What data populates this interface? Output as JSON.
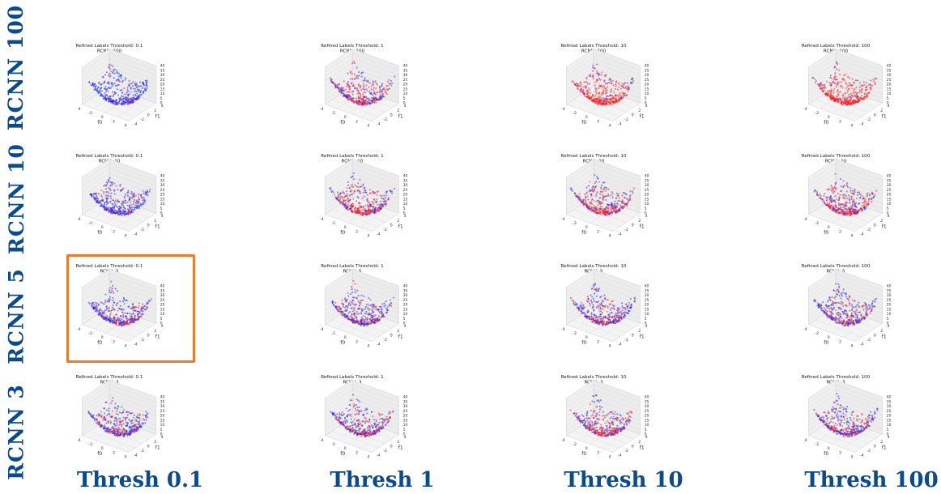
{
  "colors": {
    "label_blue": "#0b4a8c",
    "highlight": "#f07a2a",
    "class_a": "#1f2bff",
    "class_b": "#ff1a1a"
  },
  "row_labels": [
    "RCNN 100",
    "RCNN 10",
    "RCNN 5",
    "RCNN 3"
  ],
  "column_labels": [
    "Thresh 0.1",
    "Thresh 1",
    "Thresh 10",
    "Thresh 100"
  ],
  "highlighted_panel": {
    "rcnn": "5",
    "threshold": "0.1"
  },
  "chart_data": {
    "type": "scatter",
    "description_grid": "4x4 grid of 3D scatter plots; rows = RCNN value, columns = refined labels threshold",
    "axes": {
      "xlabel": "f0",
      "ylabel": "f1",
      "x_ticks": [
        "-4",
        "-2",
        "0",
        "2",
        "4"
      ],
      "y_ticks": [
        "-4",
        "-2",
        "0",
        "2",
        "4"
      ],
      "z_ticks": [
        "0",
        "5",
        "10",
        "15",
        "20",
        "25",
        "30",
        "35",
        "40"
      ]
    },
    "panels": [
      [
        {
          "title_1": "Refined Labels Threshold: 0.1",
          "title_2": "RCNN: 100",
          "red_share": 0.08
        },
        {
          "title_1": "Refined Labels Threshold: 1",
          "title_2": "RCNN: 100",
          "red_share": 0.55
        },
        {
          "title_1": "Refined Labels Threshold: 10",
          "title_2": "RCNN: 100",
          "red_share": 0.9
        },
        {
          "title_1": "Refined Labels Threshold: 100",
          "title_2": "RCNN: 100",
          "red_share": 0.92
        }
      ],
      [
        {
          "title_1": "Refined Labels Threshold: 0.1",
          "title_2": "RCNN: 10",
          "red_share": 0.2
        },
        {
          "title_1": "Refined Labels Threshold: 1",
          "title_2": "RCNN: 10",
          "red_share": 0.55
        },
        {
          "title_1": "Refined Labels Threshold: 10",
          "title_2": "RCNN: 10",
          "red_share": 0.6
        },
        {
          "title_1": "Refined Labels Threshold: 100",
          "title_2": "RCNN: 10",
          "red_share": 0.6
        }
      ],
      [
        {
          "title_1": "Refined Labels Threshold: 0.1",
          "title_2": "RCNN: 5",
          "red_share": 0.3
        },
        {
          "title_1": "Refined Labels Threshold: 1",
          "title_2": "RCNN: 5",
          "red_share": 0.35
        },
        {
          "title_1": "Refined Labels Threshold: 10",
          "title_2": "RCNN: 5",
          "red_share": 0.38
        },
        {
          "title_1": "Refined Labels Threshold: 100",
          "title_2": "RCNN: 5",
          "red_share": 0.38
        }
      ],
      [
        {
          "title_1": "Refined Labels Threshold: 0.1",
          "title_2": "RCNN: 3",
          "red_share": 0.32
        },
        {
          "title_1": "Refined Labels Threshold: 1",
          "title_2": "RCNN: 3",
          "red_share": 0.4
        },
        {
          "title_1": "Refined Labels Threshold: 10",
          "title_2": "RCNN: 3",
          "red_share": 0.55
        },
        {
          "title_1": "Refined Labels Threshold: 100",
          "title_2": "RCNN: 3",
          "red_share": 0.4
        }
      ]
    ]
  }
}
